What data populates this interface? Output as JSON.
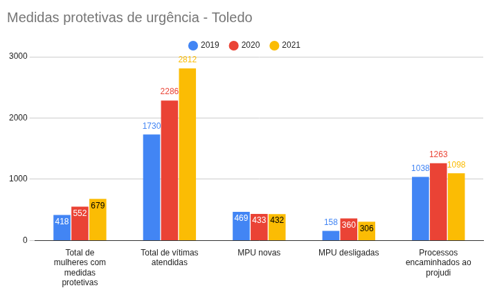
{
  "chart_data": {
    "type": "bar",
    "title": "Medidas protetivas de urgência - Toledo",
    "categories": [
      "Total de mulheres com medidas protetivas",
      "Total de vítimas atendidas",
      "MPU novas",
      "MPU desligadas",
      "Processos encaminhados ao projudi"
    ],
    "series": [
      {
        "name": "2019",
        "color": "#4285f4",
        "values": [
          418,
          1730,
          469,
          158,
          1038
        ]
      },
      {
        "name": "2020",
        "color": "#ea4335",
        "values": [
          552,
          2286,
          433,
          360,
          1263
        ]
      },
      {
        "name": "2021",
        "color": "#fbbc04",
        "values": [
          679,
          2812,
          432,
          306,
          1098
        ]
      }
    ],
    "ylim": [
      0,
      3000
    ],
    "yticks": [
      0,
      1000,
      2000,
      3000
    ],
    "grid": true,
    "legend": "top",
    "data_labels": true
  }
}
